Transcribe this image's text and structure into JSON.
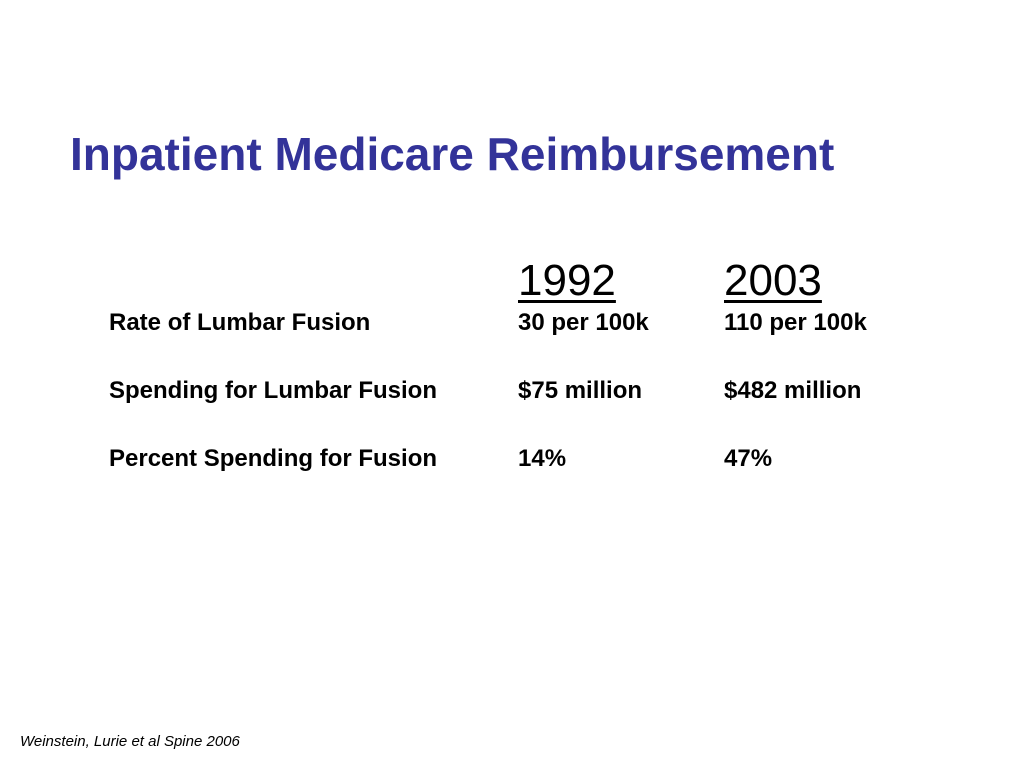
{
  "title": "Inpatient Medicare Reimbursement",
  "table": {
    "headers": [
      "1992",
      "2003"
    ],
    "rows": [
      {
        "label": "Rate of Lumbar Fusion",
        "y1992": "30 per 100k",
        "y2003": "110 per 100k"
      },
      {
        "label": "Spending for Lumbar Fusion",
        "y1992": "$75 million",
        "y2003": "$482 million"
      },
      {
        "label": "Percent Spending for Fusion",
        "y1992": "14%",
        "y2003": "47%"
      }
    ]
  },
  "citation": "Weinstein, Lurie et al Spine 2006",
  "colors": {
    "title": "#333399",
    "text": "#000000",
    "background": "#ffffff"
  }
}
